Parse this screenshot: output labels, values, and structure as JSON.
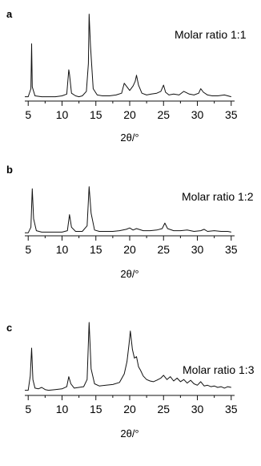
{
  "chart_data": [
    {
      "type": "line",
      "panel_label": "a",
      "annotation": "Molar ratio 1:1",
      "xlabel": "2θ/°",
      "xlim": [
        4.5,
        35.5
      ],
      "x_ticks": [
        "5",
        "10",
        "15",
        "20",
        "25",
        "30",
        "35"
      ],
      "grid": false,
      "series": [
        {
          "x": [
            4.5,
            5.0,
            5.4,
            5.5,
            5.6,
            6.0,
            7.0,
            8.0,
            9.0,
            10.0,
            10.7,
            11.0,
            11.1,
            11.4,
            12.0,
            12.5,
            13.0,
            13.6,
            13.9,
            14.0,
            14.2,
            14.6,
            15.2,
            16.0,
            17.0,
            18.0,
            18.8,
            19.2,
            19.6,
            20.0,
            20.5,
            20.8,
            21.0,
            21.3,
            21.8,
            22.5,
            23.2,
            24.0,
            24.6,
            25.0,
            25.3,
            25.8,
            26.5,
            27.3,
            28.0,
            28.8,
            29.5,
            30.2,
            30.5,
            30.9,
            31.5,
            32.2,
            33.0,
            34.0,
            35.0
          ],
          "y": [
            3,
            3,
            12,
            62,
            14,
            4,
            3,
            3,
            3,
            4,
            6,
            33,
            28,
            7,
            4,
            3,
            4,
            9,
            40,
            95,
            60,
            12,
            5,
            4,
            4,
            5,
            7,
            18,
            14,
            10,
            15,
            20,
            27,
            16,
            7,
            5,
            6,
            7,
            9,
            16,
            8,
            5,
            6,
            5,
            9,
            6,
            5,
            7,
            12,
            8,
            5,
            4,
            4,
            5,
            3
          ]
        }
      ]
    },
    {
      "type": "line",
      "panel_label": "b",
      "annotation": "Molar ratio 1:2",
      "xlabel": "2θ/°",
      "xlim": [
        4.5,
        35.5
      ],
      "x_ticks": [
        "5",
        "10",
        "15",
        "20",
        "25",
        "30",
        "35"
      ],
      "grid": false,
      "series": [
        {
          "x": [
            4.5,
            5.0,
            5.4,
            5.6,
            5.8,
            6.2,
            7.0,
            8.0,
            9.0,
            10.0,
            10.8,
            11.1,
            11.4,
            12.0,
            13.0,
            13.7,
            14.0,
            14.3,
            14.8,
            15.5,
            16.5,
            17.5,
            18.5,
            19.5,
            20.0,
            20.5,
            21.0,
            22.0,
            23.0,
            24.0,
            24.8,
            25.2,
            25.6,
            26.5,
            27.5,
            28.5,
            29.5,
            30.5,
            31.0,
            31.5,
            32.5,
            33.5,
            34.5,
            35.0
          ],
          "y": [
            2,
            2,
            10,
            65,
            22,
            5,
            3,
            3,
            3,
            3,
            5,
            28,
            10,
            4,
            4,
            12,
            68,
            30,
            6,
            4,
            4,
            4,
            5,
            7,
            9,
            6,
            8,
            5,
            5,
            6,
            8,
            16,
            8,
            5,
            5,
            6,
            4,
            5,
            7,
            4,
            5,
            4,
            4,
            3
          ]
        }
      ]
    },
    {
      "type": "line",
      "panel_label": "c",
      "annotation": "Molar ratio 1:3",
      "xlabel": "2θ/°",
      "xlim": [
        4.5,
        35.5
      ],
      "x_ticks": [
        "5",
        "10",
        "15",
        "20",
        "25",
        "30",
        "35"
      ],
      "grid": false,
      "series": [
        {
          "x": [
            4.5,
            5.0,
            5.3,
            5.5,
            5.7,
            6.0,
            6.5,
            7.0,
            7.5,
            8.0,
            9.0,
            10.0,
            10.7,
            11.0,
            11.3,
            11.8,
            12.5,
            13.2,
            13.7,
            14.0,
            14.3,
            14.8,
            15.5,
            16.5,
            17.5,
            18.5,
            19.2,
            19.6,
            19.9,
            20.1,
            20.4,
            20.7,
            21.0,
            21.3,
            21.6,
            22.0,
            22.5,
            23.0,
            23.5,
            24.0,
            24.6,
            25.0,
            25.5,
            26.0,
            26.5,
            27.0,
            27.5,
            28.0,
            28.5,
            29.0,
            29.5,
            30.0,
            30.5,
            31.0,
            31.5,
            32.0,
            32.5,
            33.0,
            33.5,
            34.0,
            34.5,
            35.0
          ],
          "y": [
            5,
            5,
            25,
            64,
            20,
            8,
            7,
            9,
            6,
            5,
            6,
            7,
            10,
            24,
            14,
            8,
            9,
            10,
            20,
            100,
            35,
            14,
            11,
            12,
            13,
            16,
            28,
            45,
            70,
            88,
            62,
            50,
            52,
            38,
            33,
            25,
            20,
            18,
            17,
            19,
            22,
            26,
            20,
            24,
            18,
            22,
            17,
            20,
            15,
            19,
            14,
            12,
            17,
            11,
            12,
            10,
            11,
            9,
            10,
            8,
            10,
            9
          ]
        }
      ]
    }
  ]
}
